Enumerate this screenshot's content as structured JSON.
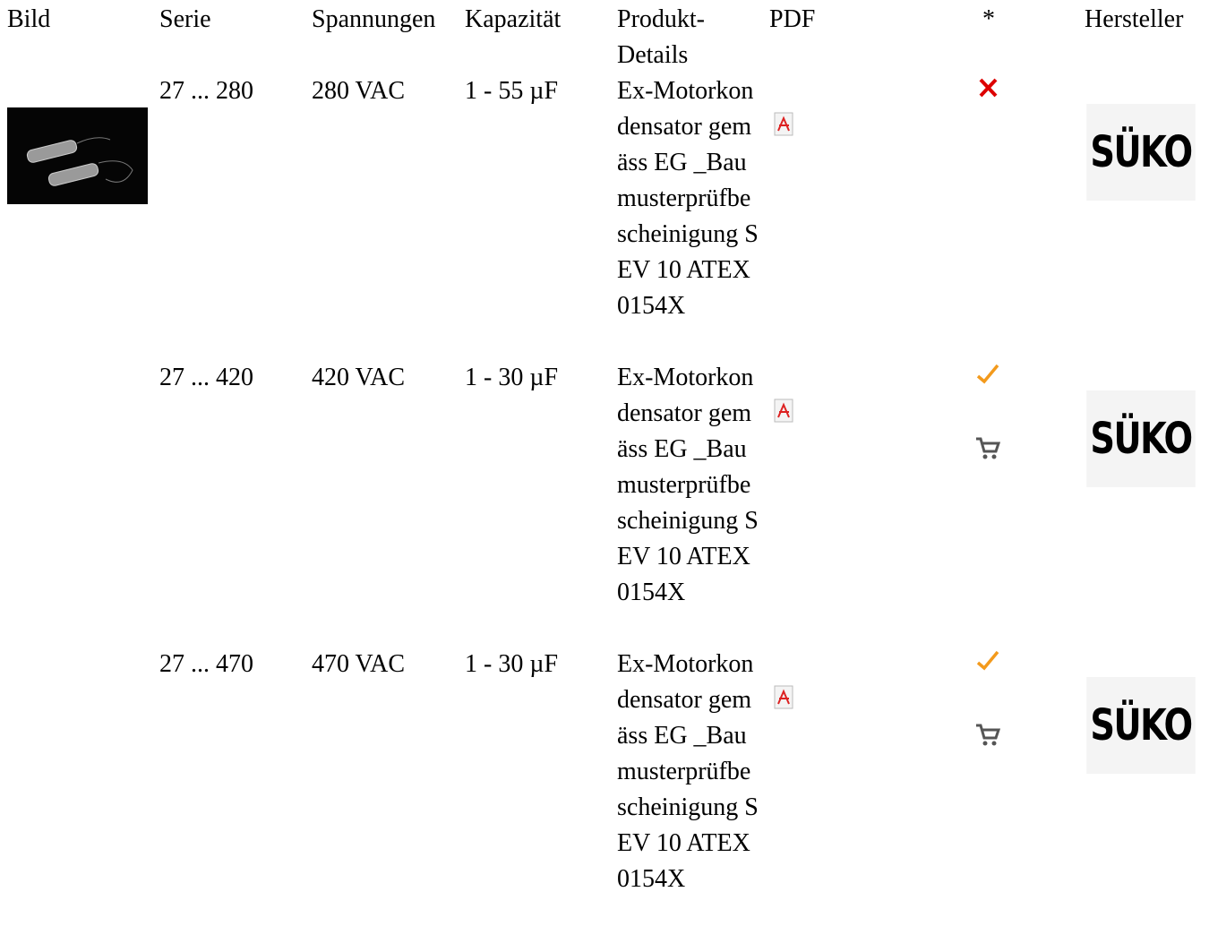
{
  "table": {
    "headers": [
      "Bild",
      "Serie",
      "Spannungen",
      "Kapazität",
      "Produkt-Details",
      "PDF",
      "*",
      "Hersteller"
    ],
    "rows": [
      [
        "27 ... 280",
        "280 VAC",
        "1 - 55 µF",
        "Ex-Motorkondensator gemäss EG _Baumusterprüfbescheinigung SEV 10 ATEX 0154X",
        "SÜKO"
      ],
      [
        "27 ... 420",
        "420 VAC",
        "1 - 30 µF",
        "Ex-Motorkondensator gemäss EG _Baumusterprüfbescheinigung SEV 10 ATEX 0154X",
        "SÜKO"
      ],
      [
        "27 ... 470",
        "470 VAC",
        "1 - 30 µF",
        "Ex-Motorkondensator gemäss EG _Baumusterprüfbescheinigung SEV 10 ATEX 0154X",
        "SÜKO"
      ]
    ]
  }
}
